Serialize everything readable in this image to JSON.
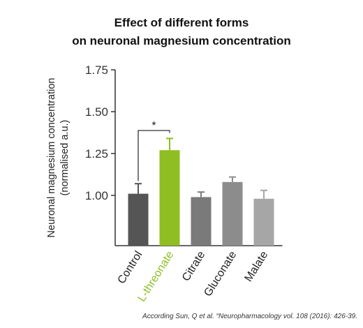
{
  "title_lines": [
    "Effect of different forms",
    "on neuronal magnesium concentration"
  ],
  "source": "According Sun, Q et al. “Neuropharmacology vol. 108 (2016): 426-39.",
  "chart_data": {
    "type": "bar",
    "categories": [
      "Control",
      "L-threonate",
      "Citrate",
      "Gluconate",
      "Malate"
    ],
    "values": [
      1.01,
      1.27,
      0.99,
      1.08,
      0.98
    ],
    "errors": [
      0.06,
      0.07,
      0.03,
      0.03,
      0.05
    ],
    "colors": [
      "#555555",
      "#8fbe22",
      "#7a7a7a",
      "#8c8c8c",
      "#a6a6a6"
    ],
    "label_colors": [
      "#222222",
      "#8fbe22",
      "#222222",
      "#222222",
      "#222222"
    ],
    "ylabel_lines": [
      "Neuronal magnesium concentration",
      "(normalised a.u.)"
    ],
    "ylim": [
      0.7,
      1.75
    ],
    "yticks": [
      "1.00",
      "1.25",
      "1.50",
      "1.75"
    ],
    "significance": {
      "from": "Control",
      "to": "L-threonate",
      "label": "*"
    },
    "grid": false,
    "legend": "none"
  }
}
